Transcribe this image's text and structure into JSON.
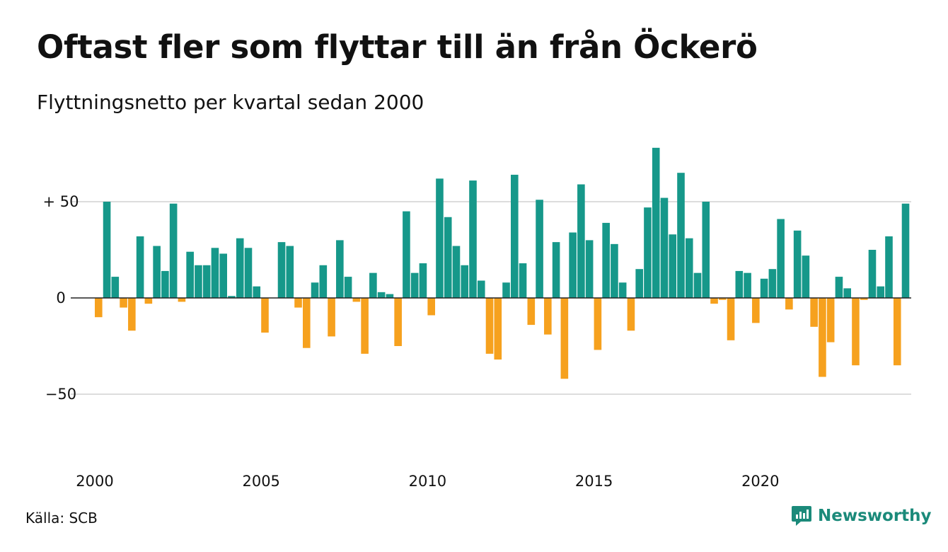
{
  "title": "Oftast fler som flyttar till än från Öckerö",
  "subtitle": "Flyttningsnetto per kvartal sedan 2000",
  "source": "Källa: SCB",
  "brand": {
    "name": "Newsworthy",
    "icon": "newsworthy-logo-icon",
    "color": "#1b8a7a"
  },
  "colors": {
    "positive": "#16988a",
    "negative": "#f6a11e",
    "grid": "#dddddd",
    "baseline": "#222222"
  },
  "chart_data": {
    "type": "bar",
    "x_start": "2000 Q1",
    "x_end": "2024 Q3",
    "x_tick_labels": [
      "2000",
      "2005",
      "2010",
      "2015",
      "2020"
    ],
    "y_ticks": [
      {
        "value": 50,
        "label": "+ 50"
      },
      {
        "value": 0,
        "label": "0"
      },
      {
        "value": -50,
        "label": "−50"
      }
    ],
    "ylim": [
      -75,
      80
    ],
    "grid": true,
    "series": [
      {
        "values": [
          -10,
          50,
          11,
          -5,
          -17,
          32,
          -3,
          27,
          14,
          49,
          -2,
          24,
          17,
          17,
          26,
          23,
          1,
          31,
          26,
          6,
          -18,
          0,
          29,
          27,
          -5,
          -26,
          8,
          17,
          -20,
          30,
          11,
          -2,
          -29,
          13,
          3,
          2,
          -25,
          45,
          13,
          18,
          -9,
          62,
          42,
          27,
          17,
          61,
          9,
          -29,
          -32,
          8,
          64,
          18,
          -14,
          51,
          -19,
          29,
          -42,
          34,
          59,
          30,
          -27,
          39,
          28,
          8,
          -17,
          15,
          47,
          78,
          52,
          33,
          65,
          31,
          13,
          50,
          -3,
          -1,
          -22,
          14,
          13,
          -13,
          10,
          15,
          41,
          -6,
          35,
          22,
          -15,
          -41,
          -23,
          11,
          5,
          -35,
          -1,
          25,
          6,
          32,
          -35,
          49
        ]
      }
    ]
  }
}
